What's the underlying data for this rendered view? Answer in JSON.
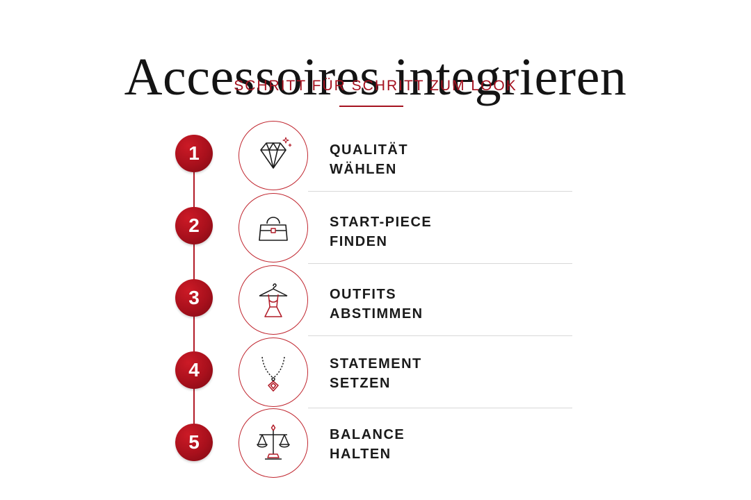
{
  "header": {
    "title": "Accessoires integrieren",
    "subtitle": "SCHRITT FÜR SCHRITT ZUM LOOK"
  },
  "colors": {
    "accent": "#a5111f",
    "text": "#1a1a1a",
    "separator": "#d8d8d8"
  },
  "steps": [
    {
      "number": "1",
      "icon": "diamond-icon",
      "line1": "QUALITÄT",
      "line2": "WÄHLEN"
    },
    {
      "number": "2",
      "icon": "handbag-icon",
      "line1": "START-PIECE",
      "line2": "FINDEN"
    },
    {
      "number": "3",
      "icon": "dress-hanger-icon",
      "line1": "OUTFITS",
      "line2": "ABSTIMMEN"
    },
    {
      "number": "4",
      "icon": "necklace-icon",
      "line1": "STATEMENT",
      "line2": "SETZEN"
    },
    {
      "number": "5",
      "icon": "balance-scale-icon",
      "line1": "BALANCE",
      "line2": "HALTEN"
    }
  ]
}
